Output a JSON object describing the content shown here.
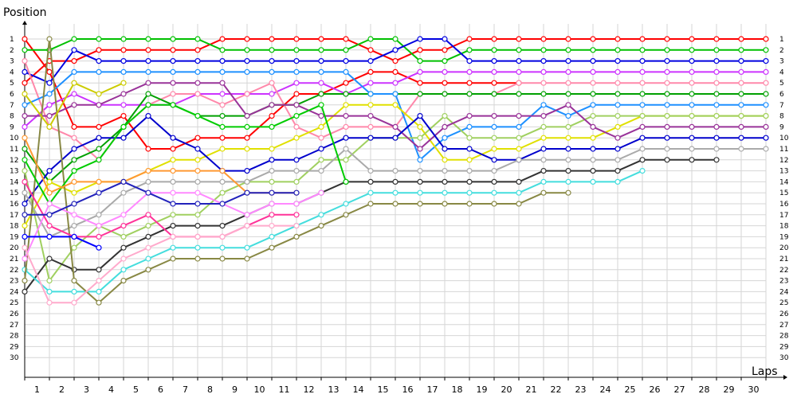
{
  "chart_data": {
    "type": "line",
    "xlabel": "Laps",
    "ylabel": "Position",
    "x_ticks": [
      1,
      2,
      3,
      4,
      5,
      6,
      7,
      8,
      9,
      10,
      11,
      12,
      13,
      14,
      15,
      16,
      17,
      18,
      19,
      20,
      21,
      22,
      23,
      24,
      25,
      26,
      27,
      28,
      29,
      30
    ],
    "y_ticks": [
      1,
      2,
      3,
      4,
      5,
      6,
      7,
      8,
      9,
      10,
      11,
      12,
      13,
      14,
      15,
      16,
      17,
      18,
      19,
      20,
      21,
      22,
      23,
      24,
      25,
      26,
      27,
      28,
      29,
      30
    ],
    "xlim": [
      0,
      30
    ],
    "ylim": [
      1,
      30
    ],
    "y_inverted": true,
    "grid": true,
    "right_axis_labels": [
      1,
      2,
      3,
      4,
      5,
      6,
      7,
      8,
      9,
      10,
      11,
      12,
      13,
      14,
      15,
      16,
      17,
      18,
      19,
      20,
      21,
      22,
      23,
      24,
      25,
      26,
      27,
      28,
      29,
      30
    ],
    "series": [
      {
        "color": "#ff0000",
        "values": [
          1,
          4,
          9,
          9,
          8,
          11,
          11,
          10,
          10,
          10,
          8,
          6,
          6,
          5,
          4,
          4,
          5,
          5,
          5,
          5,
          5
        ]
      },
      {
        "color": "#ff0000",
        "values": [
          5,
          3,
          3,
          2,
          2,
          2,
          2,
          2,
          1,
          1,
          1,
          1,
          1,
          1,
          2,
          3,
          2,
          2,
          1,
          1,
          1,
          1,
          1,
          1,
          1,
          1,
          1,
          1,
          1,
          1,
          1
        ]
      },
      {
        "color": "#00c000",
        "values": [
          2,
          2,
          1,
          1,
          1,
          1,
          1,
          1,
          2,
          2,
          2,
          2,
          2,
          2,
          1,
          1,
          3,
          3,
          2,
          2,
          2,
          2,
          2,
          2,
          2,
          2,
          2,
          2,
          2,
          2,
          2
        ]
      },
      {
        "color": "#0000e0",
        "values": [
          4,
          5,
          2,
          3,
          3,
          3,
          3,
          3,
          3,
          3,
          3,
          3,
          3,
          3,
          3,
          2,
          1,
          1,
          3,
          3,
          3,
          3,
          3,
          3,
          3,
          3,
          3,
          3,
          3,
          3,
          3
        ]
      },
      {
        "color": "#cc33ff",
        "values": [
          9,
          7,
          6,
          7,
          7,
          7,
          7,
          6,
          6,
          6,
          6,
          5,
          5,
          6,
          5,
          5,
          4,
          4,
          4,
          4,
          4,
          4,
          4,
          4,
          4,
          4,
          4,
          4,
          4,
          4,
          4
        ]
      },
      {
        "color": "#ff88aa",
        "values": [
          3,
          9,
          10,
          12,
          9,
          7,
          6,
          6,
          7,
          6,
          5,
          9,
          10,
          9,
          9,
          9,
          6,
          6,
          6,
          6,
          5,
          5,
          5,
          5,
          5,
          5,
          5,
          5,
          5,
          5,
          5
        ]
      },
      {
        "color": "#00a000",
        "values": [
          11,
          14,
          12,
          11,
          9,
          6,
          7,
          8,
          8,
          8,
          7,
          7,
          6,
          6,
          6,
          6,
          6,
          6,
          6,
          6,
          6,
          6,
          6,
          6,
          6,
          6,
          6,
          6,
          6,
          6,
          6
        ]
      },
      {
        "color": "#1e90ff",
        "values": [
          7,
          6,
          4,
          4,
          4,
          4,
          4,
          4,
          4,
          4,
          4,
          4,
          4,
          4,
          6,
          6,
          12,
          10,
          9,
          9,
          9,
          7,
          8,
          7,
          7,
          7,
          7,
          7,
          7,
          7,
          7
        ]
      },
      {
        "color": "#e0e000",
        "values": [
          18,
          14,
          15,
          14,
          14,
          13,
          12,
          12,
          11,
          11,
          11,
          10,
          9,
          7,
          7,
          7,
          9,
          12,
          12,
          11,
          11,
          10,
          10,
          10,
          9,
          8,
          8,
          8,
          8,
          8,
          8
        ]
      },
      {
        "color": "#a0d060",
        "values": [
          13,
          23,
          20,
          18,
          19,
          18,
          17,
          17,
          15,
          14,
          14,
          14,
          12,
          12,
          10,
          10,
          10,
          8,
          10,
          10,
          10,
          9,
          9,
          8,
          8,
          8,
          8,
          8,
          8,
          8,
          8
        ]
      },
      {
        "color": "#993399",
        "values": [
          8,
          8,
          7,
          7,
          6,
          5,
          5,
          5,
          5,
          8,
          7,
          7,
          8,
          8,
          8,
          9,
          11,
          9,
          8,
          8,
          8,
          8,
          7,
          9,
          10,
          9,
          9,
          9,
          9,
          9,
          9
        ]
      },
      {
        "color": "#0000cc",
        "values": [
          16,
          13,
          11,
          10,
          10,
          8,
          10,
          11,
          13,
          13,
          12,
          12,
          11,
          10,
          10,
          10,
          8,
          11,
          11,
          12,
          12,
          11,
          11,
          11,
          11,
          10,
          10,
          10,
          10,
          10,
          10
        ]
      },
      {
        "color": "#aaaaaa",
        "values": [
          15,
          19,
          18,
          17,
          15,
          14,
          14,
          14,
          14,
          14,
          13,
          13,
          13,
          11,
          13,
          13,
          13,
          13,
          13,
          13,
          12,
          12,
          12,
          12,
          12,
          11,
          11,
          11,
          11,
          11,
          11
        ]
      },
      {
        "color": "#333333",
        "values": [
          24,
          21,
          22,
          22,
          20,
          19,
          18,
          18,
          18,
          17,
          16,
          16,
          15,
          14,
          14,
          14,
          14,
          14,
          14,
          14,
          14,
          13,
          13,
          13,
          13,
          12,
          12,
          12,
          12
        ]
      },
      {
        "color": "#44dddd",
        "values": [
          22,
          24,
          24,
          24,
          22,
          21,
          20,
          20,
          20,
          20,
          19,
          18,
          17,
          16,
          15,
          15,
          15,
          15,
          15,
          15,
          15,
          14,
          14,
          14,
          14,
          13
        ]
      },
      {
        "color": "#888844",
        "values": [
          23,
          1,
          23,
          25,
          23,
          22,
          21,
          21,
          21,
          21,
          20,
          19,
          18,
          17,
          16,
          16,
          16,
          16,
          16,
          16,
          16,
          15,
          15
        ]
      },
      {
        "color": "#00cc00",
        "values": [
          12,
          16,
          13,
          12,
          9,
          7,
          7,
          8,
          9,
          9,
          9,
          8,
          7,
          14
        ]
      },
      {
        "color": "#ff88ff",
        "values": [
          21,
          16,
          17,
          18,
          17,
          15,
          15,
          15,
          16,
          17,
          16,
          16,
          15
        ]
      },
      {
        "color": "#ff3399",
        "values": [
          14,
          18,
          19,
          19,
          18,
          17,
          19,
          19,
          19,
          18,
          17,
          17
        ]
      },
      {
        "color": "#ff9933",
        "values": [
          10,
          15,
          14,
          14,
          14,
          13,
          13,
          13,
          13,
          15,
          15,
          15
        ]
      },
      {
        "color": "#0000ff",
        "values": [
          19,
          19,
          19,
          20
        ]
      },
      {
        "color": "#2222bb",
        "values": [
          17,
          17,
          16,
          15,
          14,
          15,
          16,
          16,
          16,
          15,
          15,
          15
        ]
      },
      {
        "color": "#ffaacc",
        "values": [
          20,
          25,
          25,
          23,
          21,
          20,
          19,
          19,
          19,
          18,
          18,
          18
        ]
      },
      {
        "color": "#cccc00",
        "values": [
          6,
          9,
          5,
          6,
          5
        ]
      }
    ]
  }
}
